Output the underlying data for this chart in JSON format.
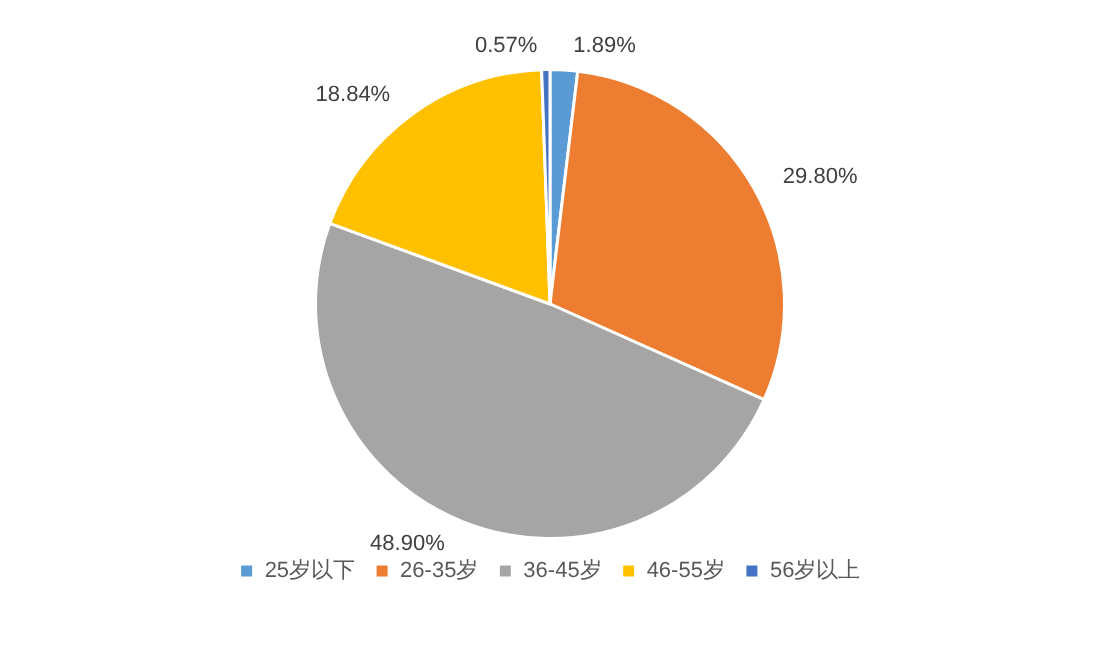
{
  "chart_data": {
    "type": "pie",
    "categories": [
      "25岁以下",
      "26-35岁",
      "36-45岁",
      "46-55岁",
      "56岁以上"
    ],
    "values": [
      1.89,
      29.8,
      48.9,
      18.84,
      0.57
    ],
    "colors": [
      "#5b9bd5",
      "#ed7d31",
      "#a5a5a5",
      "#ffc000",
      "#4472c4"
    ],
    "value_labels": [
      "1.89%",
      "29.80%",
      "48.90%",
      "18.84%",
      "0.57%"
    ],
    "legend": "bottom"
  }
}
